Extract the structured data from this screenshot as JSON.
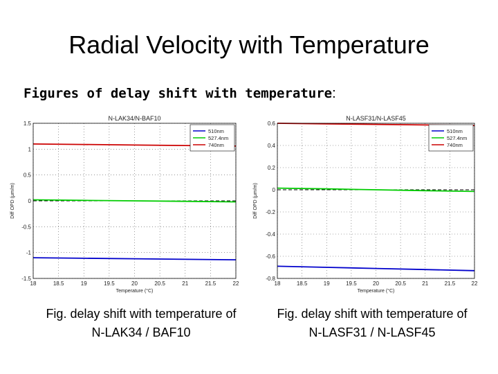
{
  "slide": {
    "title": "Radial Velocity with Temperature",
    "subheading_bold": "Figures of delay shift with temperature",
    "subheading_tail": ":"
  },
  "captions": [
    {
      "line1": "Fig. delay shift with temperature of",
      "line2": "N-LAK34 / BAF10"
    },
    {
      "line1": "Fig. delay shift with temperature of",
      "line2": "N-LASF31 / N-LASF45"
    }
  ],
  "chart_data": [
    {
      "type": "line",
      "title": "N-LAK34/N-BAF10",
      "xlabel": "Temperature (°C)",
      "ylabel": "Diff OPD (μm/m)",
      "xlim": [
        18,
        22
      ],
      "ylim": [
        -1.5,
        1.5
      ],
      "xticks": [
        "18",
        "18.5",
        "19",
        "19.5",
        "20",
        "20.5",
        "21",
        "21.5",
        "22"
      ],
      "yticks": [
        "1.5",
        "1",
        "0.5",
        "0",
        "-0.5",
        "-1",
        "-1.5"
      ],
      "grid": true,
      "legend_position": "top-right",
      "reference_line": 0,
      "x": [
        18,
        19,
        20,
        21,
        22
      ],
      "series": [
        {
          "name": "510nm",
          "color": "#0000cc",
          "values": [
            -1.1,
            -1.11,
            -1.12,
            -1.13,
            -1.14
          ]
        },
        {
          "name": "527.4nm",
          "color": "#00cc00",
          "values": [
            0.02,
            0.01,
            0.0,
            -0.01,
            -0.02
          ]
        },
        {
          "name": "740nm",
          "color": "#cc0000",
          "values": [
            1.1,
            1.09,
            1.08,
            1.07,
            1.06
          ]
        }
      ]
    },
    {
      "type": "line",
      "title": "N-LASF31/N-LASF45",
      "xlabel": "Temperature (°C)",
      "ylabel": "Diff OPD (μm/m)",
      "xlim": [
        18,
        22
      ],
      "ylim": [
        -0.8,
        0.6
      ],
      "xticks": [
        "18",
        "18.5",
        "19",
        "19.5",
        "20",
        "20.5",
        "21",
        "21.5",
        "22"
      ],
      "yticks": [
        "0.6",
        "0.4",
        "0.2",
        "0",
        "-0.2",
        "-0.4",
        "-0.6",
        "-0.8"
      ],
      "grid": true,
      "legend_position": "top-right",
      "reference_line": 0,
      "x": [
        18,
        19,
        20,
        21,
        22
      ],
      "series": [
        {
          "name": "510nm",
          "color": "#0000cc",
          "values": [
            -0.69,
            -0.7,
            -0.71,
            -0.72,
            -0.73
          ]
        },
        {
          "name": "527.4nm",
          "color": "#00cc00",
          "values": [
            0.015,
            0.008,
            0.0,
            -0.008,
            -0.015
          ]
        },
        {
          "name": "740nm",
          "color": "#cc0000",
          "values": [
            0.6,
            0.595,
            0.59,
            0.585,
            0.58
          ]
        }
      ]
    }
  ]
}
